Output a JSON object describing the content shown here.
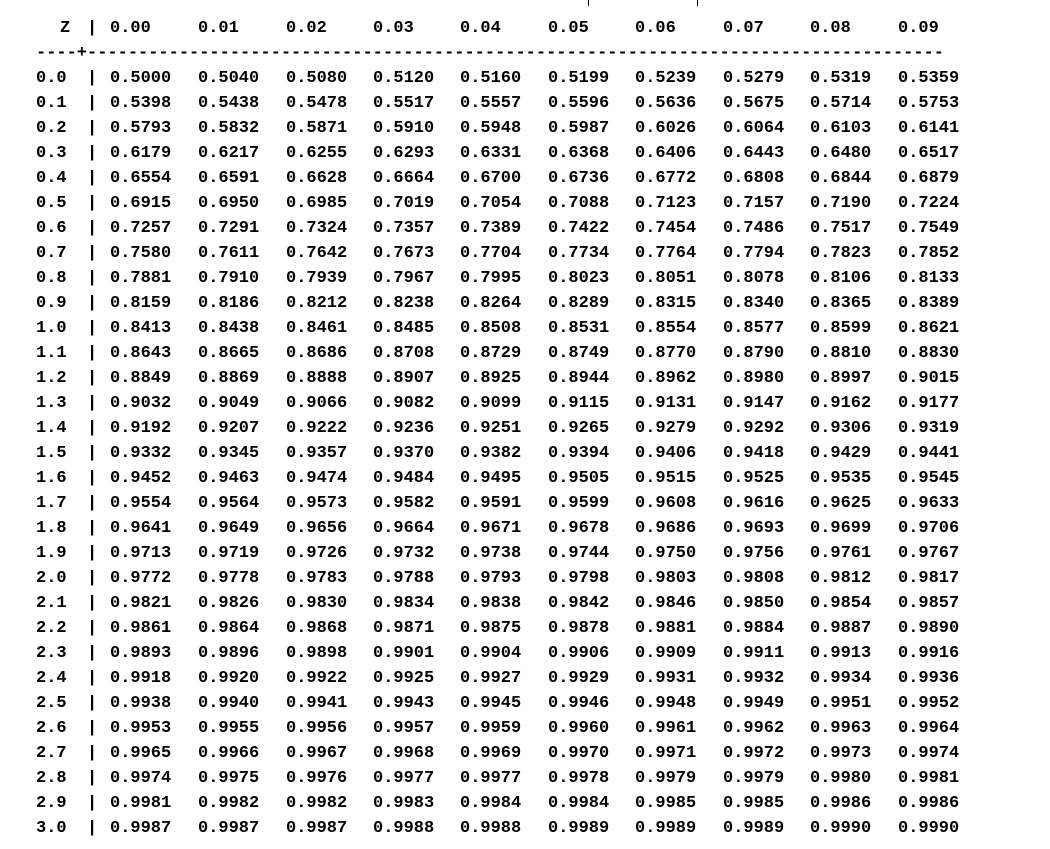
{
  "table": {
    "z_header": "Z",
    "column_headers": [
      "0.00",
      "0.01",
      "0.02",
      "0.03",
      "0.04",
      "0.05",
      "0.06",
      "0.07",
      "0.08",
      "0.09"
    ],
    "rule_text": "----+------------------------------------------------------------------------------------",
    "rows": [
      {
        "z": "0.0",
        "values": [
          "0.5000",
          "0.5040",
          "0.5080",
          "0.5120",
          "0.5160",
          "0.5199",
          "0.5239",
          "0.5279",
          "0.5319",
          "0.5359"
        ]
      },
      {
        "z": "0.1",
        "values": [
          "0.5398",
          "0.5438",
          "0.5478",
          "0.5517",
          "0.5557",
          "0.5596",
          "0.5636",
          "0.5675",
          "0.5714",
          "0.5753"
        ]
      },
      {
        "z": "0.2",
        "values": [
          "0.5793",
          "0.5832",
          "0.5871",
          "0.5910",
          "0.5948",
          "0.5987",
          "0.6026",
          "0.6064",
          "0.6103",
          "0.6141"
        ]
      },
      {
        "z": "0.3",
        "values": [
          "0.6179",
          "0.6217",
          "0.6255",
          "0.6293",
          "0.6331",
          "0.6368",
          "0.6406",
          "0.6443",
          "0.6480",
          "0.6517"
        ]
      },
      {
        "z": "0.4",
        "values": [
          "0.6554",
          "0.6591",
          "0.6628",
          "0.6664",
          "0.6700",
          "0.6736",
          "0.6772",
          "0.6808",
          "0.6844",
          "0.6879"
        ]
      },
      {
        "z": "0.5",
        "values": [
          "0.6915",
          "0.6950",
          "0.6985",
          "0.7019",
          "0.7054",
          "0.7088",
          "0.7123",
          "0.7157",
          "0.7190",
          "0.7224"
        ]
      },
      {
        "z": "0.6",
        "values": [
          "0.7257",
          "0.7291",
          "0.7324",
          "0.7357",
          "0.7389",
          "0.7422",
          "0.7454",
          "0.7486",
          "0.7517",
          "0.7549"
        ]
      },
      {
        "z": "0.7",
        "values": [
          "0.7580",
          "0.7611",
          "0.7642",
          "0.7673",
          "0.7704",
          "0.7734",
          "0.7764",
          "0.7794",
          "0.7823",
          "0.7852"
        ]
      },
      {
        "z": "0.8",
        "values": [
          "0.7881",
          "0.7910",
          "0.7939",
          "0.7967",
          "0.7995",
          "0.8023",
          "0.8051",
          "0.8078",
          "0.8106",
          "0.8133"
        ]
      },
      {
        "z": "0.9",
        "values": [
          "0.8159",
          "0.8186",
          "0.8212",
          "0.8238",
          "0.8264",
          "0.8289",
          "0.8315",
          "0.8340",
          "0.8365",
          "0.8389"
        ]
      },
      {
        "z": "1.0",
        "values": [
          "0.8413",
          "0.8438",
          "0.8461",
          "0.8485",
          "0.8508",
          "0.8531",
          "0.8554",
          "0.8577",
          "0.8599",
          "0.8621"
        ]
      },
      {
        "z": "1.1",
        "values": [
          "0.8643",
          "0.8665",
          "0.8686",
          "0.8708",
          "0.8729",
          "0.8749",
          "0.8770",
          "0.8790",
          "0.8810",
          "0.8830"
        ]
      },
      {
        "z": "1.2",
        "values": [
          "0.8849",
          "0.8869",
          "0.8888",
          "0.8907",
          "0.8925",
          "0.8944",
          "0.8962",
          "0.8980",
          "0.8997",
          "0.9015"
        ]
      },
      {
        "z": "1.3",
        "values": [
          "0.9032",
          "0.9049",
          "0.9066",
          "0.9082",
          "0.9099",
          "0.9115",
          "0.9131",
          "0.9147",
          "0.9162",
          "0.9177"
        ]
      },
      {
        "z": "1.4",
        "values": [
          "0.9192",
          "0.9207",
          "0.9222",
          "0.9236",
          "0.9251",
          "0.9265",
          "0.9279",
          "0.9292",
          "0.9306",
          "0.9319"
        ]
      },
      {
        "z": "1.5",
        "values": [
          "0.9332",
          "0.9345",
          "0.9357",
          "0.9370",
          "0.9382",
          "0.9394",
          "0.9406",
          "0.9418",
          "0.9429",
          "0.9441"
        ]
      },
      {
        "z": "1.6",
        "values": [
          "0.9452",
          "0.9463",
          "0.9474",
          "0.9484",
          "0.9495",
          "0.9505",
          "0.9515",
          "0.9525",
          "0.9535",
          "0.9545"
        ]
      },
      {
        "z": "1.7",
        "values": [
          "0.9554",
          "0.9564",
          "0.9573",
          "0.9582",
          "0.9591",
          "0.9599",
          "0.9608",
          "0.9616",
          "0.9625",
          "0.9633"
        ]
      },
      {
        "z": "1.8",
        "values": [
          "0.9641",
          "0.9649",
          "0.9656",
          "0.9664",
          "0.9671",
          "0.9678",
          "0.9686",
          "0.9693",
          "0.9699",
          "0.9706"
        ]
      },
      {
        "z": "1.9",
        "values": [
          "0.9713",
          "0.9719",
          "0.9726",
          "0.9732",
          "0.9738",
          "0.9744",
          "0.9750",
          "0.9756",
          "0.9761",
          "0.9767"
        ]
      },
      {
        "z": "2.0",
        "values": [
          "0.9772",
          "0.9778",
          "0.9783",
          "0.9788",
          "0.9793",
          "0.9798",
          "0.9803",
          "0.9808",
          "0.9812",
          "0.9817"
        ]
      },
      {
        "z": "2.1",
        "values": [
          "0.9821",
          "0.9826",
          "0.9830",
          "0.9834",
          "0.9838",
          "0.9842",
          "0.9846",
          "0.9850",
          "0.9854",
          "0.9857"
        ]
      },
      {
        "z": "2.2",
        "values": [
          "0.9861",
          "0.9864",
          "0.9868",
          "0.9871",
          "0.9875",
          "0.9878",
          "0.9881",
          "0.9884",
          "0.9887",
          "0.9890"
        ]
      },
      {
        "z": "2.3",
        "values": [
          "0.9893",
          "0.9896",
          "0.9898",
          "0.9901",
          "0.9904",
          "0.9906",
          "0.9909",
          "0.9911",
          "0.9913",
          "0.9916"
        ]
      },
      {
        "z": "2.4",
        "values": [
          "0.9918",
          "0.9920",
          "0.9922",
          "0.9925",
          "0.9927",
          "0.9929",
          "0.9931",
          "0.9932",
          "0.9934",
          "0.9936"
        ]
      },
      {
        "z": "2.5",
        "values": [
          "0.9938",
          "0.9940",
          "0.9941",
          "0.9943",
          "0.9945",
          "0.9946",
          "0.9948",
          "0.9949",
          "0.9951",
          "0.9952"
        ]
      },
      {
        "z": "2.6",
        "values": [
          "0.9953",
          "0.9955",
          "0.9956",
          "0.9957",
          "0.9959",
          "0.9960",
          "0.9961",
          "0.9962",
          "0.9963",
          "0.9964"
        ]
      },
      {
        "z": "2.7",
        "values": [
          "0.9965",
          "0.9966",
          "0.9967",
          "0.9968",
          "0.9969",
          "0.9970",
          "0.9971",
          "0.9972",
          "0.9973",
          "0.9974"
        ]
      },
      {
        "z": "2.8",
        "values": [
          "0.9974",
          "0.9975",
          "0.9976",
          "0.9977",
          "0.9977",
          "0.9978",
          "0.9979",
          "0.9979",
          "0.9980",
          "0.9981"
        ]
      },
      {
        "z": "2.9",
        "values": [
          "0.9981",
          "0.9982",
          "0.9982",
          "0.9983",
          "0.9984",
          "0.9984",
          "0.9985",
          "0.9985",
          "0.9986",
          "0.9986"
        ]
      },
      {
        "z": "3.0",
        "values": [
          "0.9987",
          "0.9987",
          "0.9987",
          "0.9988",
          "0.9988",
          "0.9989",
          "0.9989",
          "0.9989",
          "0.9990",
          "0.9990"
        ]
      }
    ]
  }
}
